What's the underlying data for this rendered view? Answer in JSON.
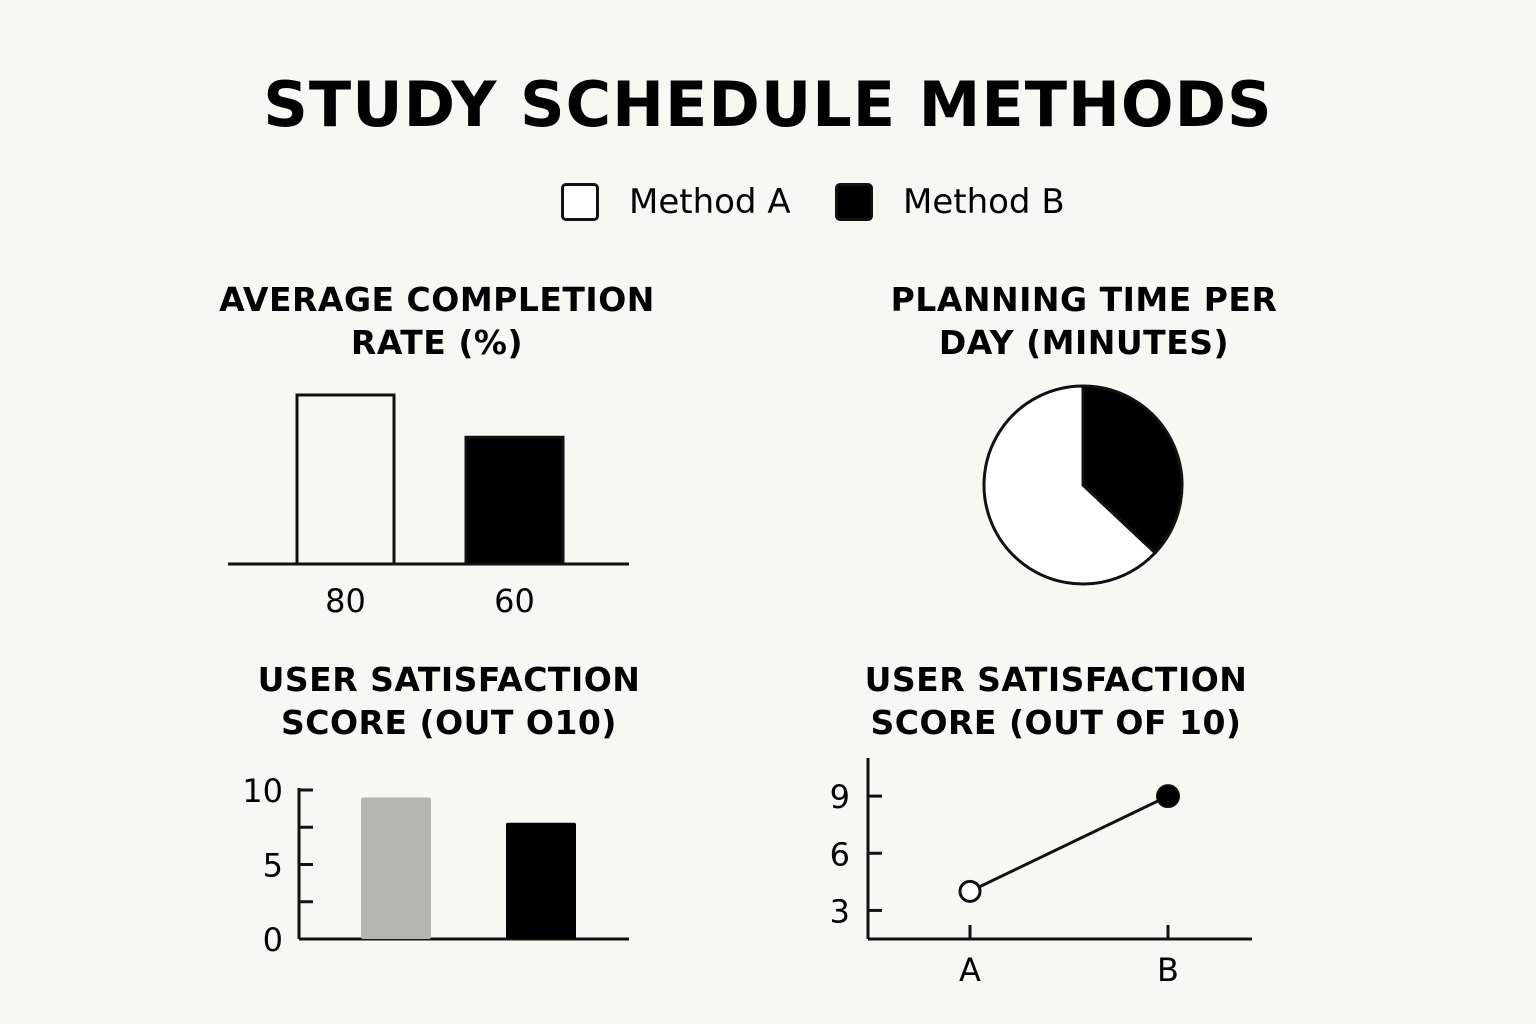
{
  "title": "STUDY SCHEDULE METHODS",
  "legend": [
    {
      "label": "Method A",
      "color": "#f8f7f2"
    },
    {
      "label": "Method B",
      "color": "#000000"
    }
  ],
  "chart_data": [
    {
      "type": "bar",
      "title_lines": [
        "AVERAGE COMPLETION",
        "RATE (%)"
      ],
      "categories": [
        "80",
        "60"
      ],
      "values": [
        80,
        60
      ],
      "colors": [
        "#f8f7f2",
        "#000000"
      ],
      "ylim": [
        0,
        80
      ]
    },
    {
      "type": "pie",
      "title_lines": [
        "PLANNING TIME PER",
        "DAY (MINUTES)"
      ],
      "slices": [
        {
          "name": "Method A",
          "value": 63,
          "color": "#ffffff"
        },
        {
          "name": "Method B",
          "value": 37,
          "color": "#000000"
        }
      ]
    },
    {
      "type": "bar",
      "title_lines": [
        "USER SATISFACTION",
        "SCORE (OUT O10)"
      ],
      "values": [
        9.5,
        7.8
      ],
      "colors": [
        "#b5b5ae",
        "#000000"
      ],
      "ylim": [
        0,
        10
      ],
      "yticks": [
        0,
        5,
        10
      ]
    },
    {
      "type": "line",
      "title_lines": [
        "USER SATISFACTION",
        "SCORE (OUT OF 10)"
      ],
      "x": [
        "A",
        "B"
      ],
      "y": [
        4,
        9
      ],
      "ylim": [
        1.5,
        11
      ],
      "yticks": [
        3,
        6,
        9
      ]
    }
  ]
}
